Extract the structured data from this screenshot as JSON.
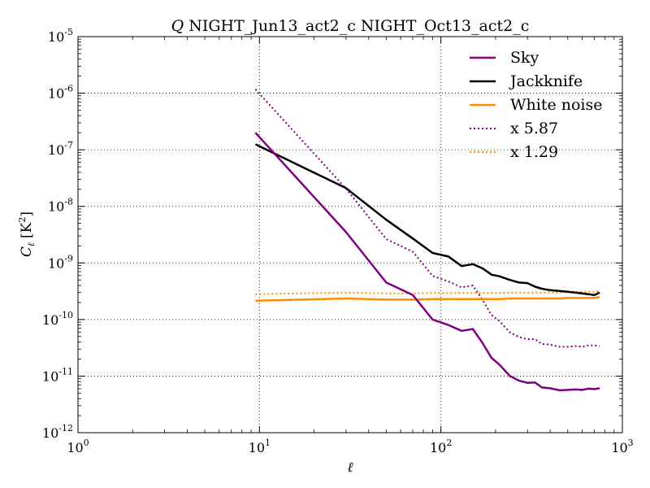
{
  "chart_data": {
    "type": "line",
    "title": "Q NIGHT_Jun13_act2_c NIGHT_Oct13_act2_c",
    "title_parts": {
      "italic": "Q",
      "rest": " NIGHT_Jun13_act2_c NIGHT_Oct13_act2_c"
    },
    "xlabel": "ℓ",
    "ylabel": "C_ℓ [K²]",
    "ylabel_parts": {
      "main": "C",
      "sub": "ℓ",
      "unit": " [K",
      "unit_sup": "2",
      "unit_end": "]"
    },
    "xscale": "log",
    "yscale": "log",
    "xlim": [
      1,
      1000
    ],
    "ylim": [
      1e-12,
      1e-05
    ],
    "xticks": [
      {
        "value": 1,
        "base": "10",
        "exp": "0"
      },
      {
        "value": 10,
        "base": "10",
        "exp": "1"
      },
      {
        "value": 100,
        "base": "10",
        "exp": "2"
      },
      {
        "value": 1000,
        "base": "10",
        "exp": "3"
      }
    ],
    "yticks": [
      {
        "value": 1e-12,
        "base": "10",
        "exp": "-12"
      },
      {
        "value": 1e-11,
        "base": "10",
        "exp": "-11"
      },
      {
        "value": 1e-10,
        "base": "10",
        "exp": "-10"
      },
      {
        "value": 1e-09,
        "base": "10",
        "exp": "-9"
      },
      {
        "value": 1e-08,
        "base": "10",
        "exp": "-8"
      },
      {
        "value": 1e-07,
        "base": "10",
        "exp": "-7"
      },
      {
        "value": 1e-06,
        "base": "10",
        "exp": "-6"
      },
      {
        "value": 1e-05,
        "base": "10",
        "exp": "-5"
      }
    ],
    "grid": true,
    "legend_position": "top-right",
    "series": [
      {
        "name": "Sky",
        "color": "#800080",
        "style": "solid",
        "x": [
          9.5,
          30,
          50,
          70,
          90,
          110,
          130,
          150,
          170,
          190,
          210,
          240,
          270,
          300,
          330,
          360,
          400,
          450,
          500,
          550,
          600,
          650,
          700,
          750
        ],
        "y": [
          2e-07,
          3.5e-09,
          4.5e-10,
          2.7e-10,
          1e-10,
          8e-11,
          6.3e-11,
          6.8e-11,
          3.8e-11,
          2.1e-11,
          1.6e-11,
          1e-11,
          8.3e-12,
          7.6e-12,
          7.7e-12,
          6.3e-12,
          6.1e-12,
          5.6e-12,
          5.7e-12,
          5.8e-12,
          5.7e-12,
          6e-12,
          5.9e-12,
          6.1e-12
        ]
      },
      {
        "name": "Jackknife",
        "color": "#000000",
        "style": "solid",
        "x": [
          9.5,
          30,
          50,
          70,
          90,
          110,
          130,
          150,
          170,
          190,
          210,
          240,
          270,
          300,
          330,
          360,
          400,
          450,
          500,
          550,
          600,
          650,
          700,
          750
        ],
        "y": [
          1.25e-07,
          2.1e-08,
          5.8e-09,
          2.7e-09,
          1.5e-09,
          1.3e-09,
          8.8e-10,
          9.5e-10,
          8e-10,
          6.2e-10,
          5.8e-10,
          5e-10,
          4.5e-10,
          4.4e-10,
          3.8e-10,
          3.5e-10,
          3.3e-10,
          3.2e-10,
          3.1e-10,
          3e-10,
          2.9e-10,
          2.8e-10,
          2.7e-10,
          3e-10
        ]
      },
      {
        "name": "White noise",
        "color": "#ff8c00",
        "style": "solid",
        "x": [
          9.5,
          30,
          50,
          70,
          90,
          110,
          130,
          150,
          170,
          190,
          210,
          240,
          270,
          300,
          330,
          360,
          400,
          450,
          500,
          550,
          600,
          650,
          700,
          750
        ],
        "y": [
          2.15e-10,
          2.35e-10,
          2.25e-10,
          2.25e-10,
          2.3e-10,
          2.3e-10,
          2.3e-10,
          2.3e-10,
          2.3e-10,
          2.3e-10,
          2.3e-10,
          2.35e-10,
          2.35e-10,
          2.35e-10,
          2.35e-10,
          2.35e-10,
          2.35e-10,
          2.35e-10,
          2.4e-10,
          2.4e-10,
          2.4e-10,
          2.4e-10,
          2.4e-10,
          2.5e-10
        ]
      },
      {
        "name": "x 5.87",
        "color": "#800080",
        "style": "dotted",
        "x": [
          9.5,
          30,
          50,
          70,
          90,
          110,
          130,
          150,
          170,
          190,
          210,
          240,
          270,
          300,
          330,
          360,
          400,
          450,
          500,
          550,
          600,
          650,
          700,
          750
        ],
        "y": [
          1.17e-06,
          2.05e-08,
          2.64e-09,
          1.58e-09,
          5.9e-10,
          4.7e-10,
          3.7e-10,
          4e-10,
          2.2e-10,
          1.2e-10,
          9.4e-11,
          5.9e-11,
          4.9e-11,
          4.5e-11,
          4.5e-11,
          3.7e-11,
          3.6e-11,
          3.3e-11,
          3.3e-11,
          3.4e-11,
          3.3e-11,
          3.5e-11,
          3.5e-11,
          3.4e-11
        ]
      },
      {
        "name": "x 1.29",
        "color": "#ff8c00",
        "style": "dotted",
        "x": [
          9.5,
          30,
          50,
          70,
          90,
          110,
          130,
          150,
          170,
          190,
          210,
          240,
          270,
          300,
          330,
          360,
          400,
          450,
          500,
          550,
          600,
          650,
          700,
          750
        ],
        "y": [
          2.8e-10,
          3e-10,
          2.9e-10,
          2.9e-10,
          2.95e-10,
          2.95e-10,
          2.95e-10,
          2.95e-10,
          2.95e-10,
          2.95e-10,
          2.95e-10,
          3e-10,
          3e-10,
          3e-10,
          3e-10,
          3e-10,
          3e-10,
          3e-10,
          3.1e-10,
          3.1e-10,
          3.1e-10,
          3.1e-10,
          3.1e-10,
          3.2e-10
        ]
      }
    ]
  }
}
